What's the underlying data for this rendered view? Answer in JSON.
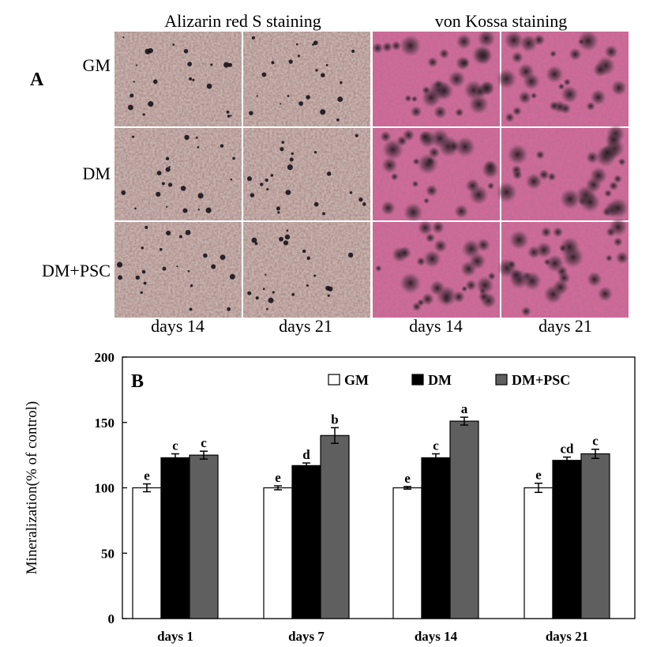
{
  "panel_a": {
    "label": "A",
    "headers": [
      "Alizarin red S staining",
      "von Kossa staining"
    ],
    "rows": [
      "GM",
      "DM",
      "DM+PSC"
    ],
    "columns": [
      "days 14",
      "days 21",
      "days 14",
      "days 21"
    ],
    "colors": {
      "alizarin_bg": "#c7b2ad",
      "alizarin_dark": "#a0705f",
      "kossa_bg": "#d26a98",
      "kossa_dark": "#7a3a5a",
      "spot": "#1a1218"
    }
  },
  "chart_data": {
    "type": "bar",
    "panel_label": "B",
    "title": "",
    "xlabel": "",
    "ylabel": "Mineralization(% of control)",
    "ylim": [
      0,
      200
    ],
    "yticks": [
      0,
      50,
      100,
      150,
      200
    ],
    "categories": [
      "days 1",
      "days 7",
      "days 14",
      "days 21"
    ],
    "legend_position": "top-right",
    "series": [
      {
        "name": "GM",
        "color": "#ffffff",
        "values": [
          100,
          100,
          100,
          100
        ],
        "errors": [
          3,
          1.5,
          1,
          3.5
        ],
        "labels": [
          "e",
          "e",
          "e",
          "e"
        ]
      },
      {
        "name": "DM",
        "color": "#000000",
        "values": [
          123,
          117,
          123,
          121
        ],
        "errors": [
          3,
          2,
          3,
          2.5
        ],
        "labels": [
          "c",
          "d",
          "c",
          "cd"
        ]
      },
      {
        "name": "DM+PSC",
        "color": "#5f5f5f",
        "values": [
          125,
          140,
          151,
          126
        ],
        "errors": [
          3,
          6,
          3,
          3.5
        ],
        "labels": [
          "c",
          "b",
          "a",
          "c"
        ]
      }
    ]
  }
}
